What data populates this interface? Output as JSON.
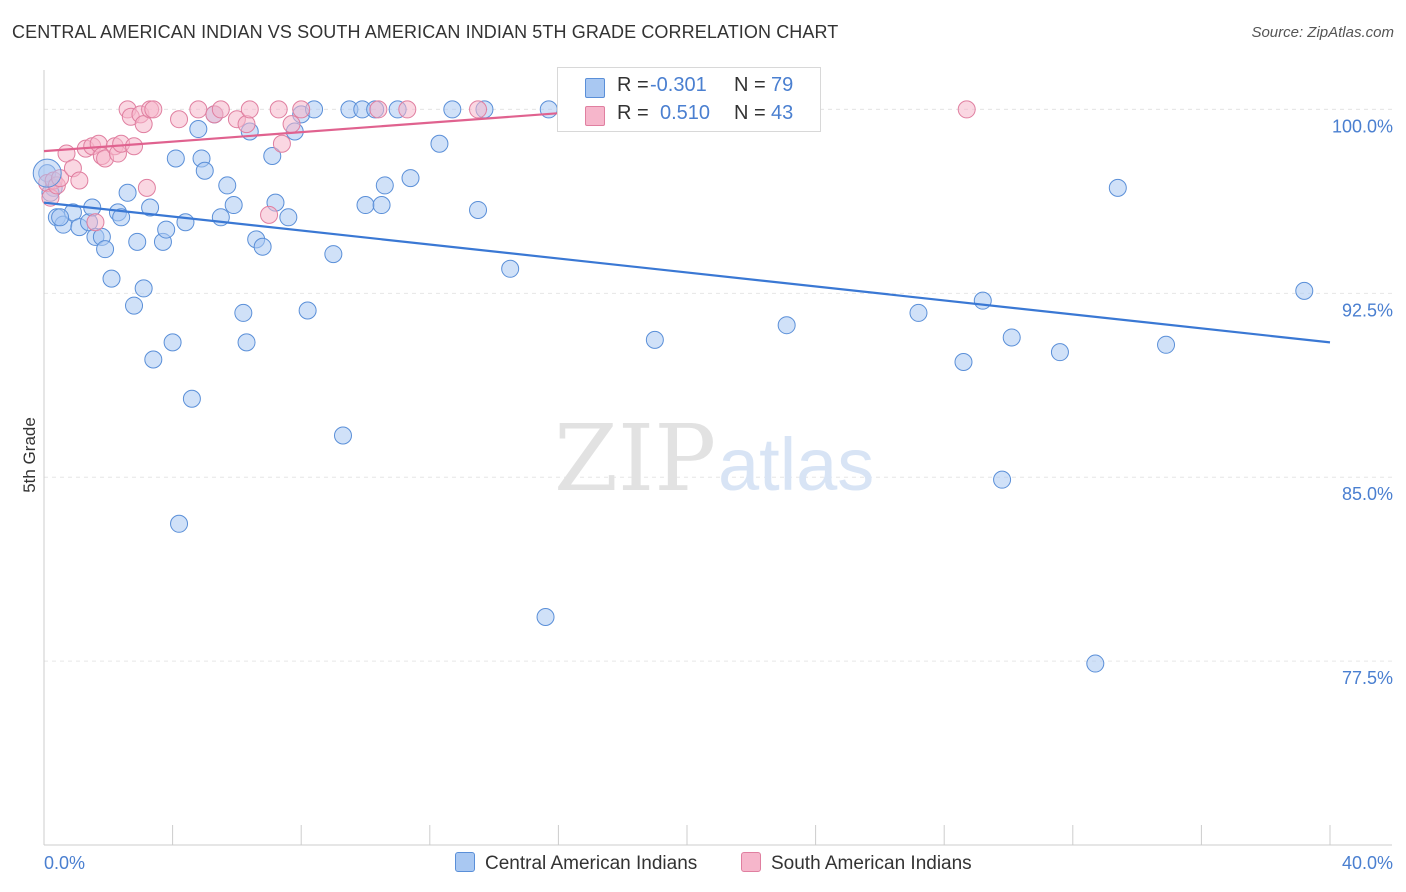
{
  "header": {
    "title": "CENTRAL AMERICAN INDIAN VS SOUTH AMERICAN INDIAN 5TH GRADE CORRELATION CHART",
    "source": "Source: ZipAtlas.com"
  },
  "watermark": {
    "zip": "ZIP",
    "atlas": "atlas"
  },
  "legend": {
    "rows": [
      {
        "r_label": "R =",
        "r_value": "-0.301",
        "n_label": "N =",
        "n_value": "79",
        "color": "#a9c8f2",
        "stroke": "#5a8fd8"
      },
      {
        "r_label": "R =",
        "r_value": "0.510",
        "n_label": "N =",
        "n_value": "43",
        "color": "#f6b6cb",
        "stroke": "#e07fa0"
      }
    ]
  },
  "bottom_legend": {
    "items": [
      {
        "label": "Central American Indians",
        "color": "#a9c8f2",
        "stroke": "#5a8fd8"
      },
      {
        "label": "South American Indians",
        "color": "#f6b6cb",
        "stroke": "#e07fa0"
      }
    ]
  },
  "chart_data": {
    "type": "scatter",
    "title": "CENTRAL AMERICAN INDIAN VS SOUTH AMERICAN INDIAN 5TH GRADE CORRELATION CHART",
    "xlabel": "",
    "ylabel": "5th Grade",
    "xlim": [
      0,
      40
    ],
    "ylim": [
      70,
      101.2
    ],
    "x_tick_labels": [
      "0.0%",
      "40.0%"
    ],
    "y_ticks": [
      77.5,
      85.0,
      92.5,
      100.0
    ],
    "y_tick_labels": [
      "77.5%",
      "85.0%",
      "92.5%",
      "100.0%"
    ],
    "grid": true,
    "legend_position": "top-center",
    "series": [
      {
        "name": "Central American Indians",
        "color": "#a9c8f2",
        "stroke": "#5a8fd8",
        "trend": {
          "x": [
            0,
            40
          ],
          "y": [
            96.2,
            90.5
          ],
          "color": "#3a78d4"
        },
        "points": [
          [
            0.1,
            97.4
          ],
          [
            0.3,
            96.8
          ],
          [
            0.4,
            95.6
          ],
          [
            0.6,
            95.3
          ],
          [
            0.9,
            95.8
          ],
          [
            1.1,
            95.2
          ],
          [
            1.4,
            95.4
          ],
          [
            1.5,
            96.0
          ],
          [
            1.6,
            94.8
          ],
          [
            1.8,
            94.8
          ],
          [
            1.9,
            94.3
          ],
          [
            2.1,
            93.1
          ],
          [
            2.3,
            95.8
          ],
          [
            2.4,
            95.6
          ],
          [
            2.6,
            96.6
          ],
          [
            2.8,
            92.0
          ],
          [
            2.9,
            94.6
          ],
          [
            3.1,
            92.7
          ],
          [
            3.3,
            96.0
          ],
          [
            3.4,
            89.8
          ],
          [
            3.7,
            94.6
          ],
          [
            3.8,
            95.1
          ],
          [
            4.0,
            90.5
          ],
          [
            4.1,
            98.0
          ],
          [
            4.2,
            83.1
          ],
          [
            4.4,
            95.4
          ],
          [
            4.6,
            88.2
          ],
          [
            4.8,
            99.2
          ],
          [
            4.9,
            98.0
          ],
          [
            5.0,
            97.5
          ],
          [
            5.3,
            99.8
          ],
          [
            5.5,
            95.6
          ],
          [
            5.7,
            96.9
          ],
          [
            5.9,
            96.1
          ],
          [
            6.2,
            91.7
          ],
          [
            6.3,
            90.5
          ],
          [
            6.4,
            99.1
          ],
          [
            6.6,
            94.7
          ],
          [
            6.8,
            94.4
          ],
          [
            7.1,
            98.1
          ],
          [
            7.2,
            96.2
          ],
          [
            7.6,
            95.6
          ],
          [
            7.8,
            99.1
          ],
          [
            8.0,
            99.8
          ],
          [
            8.2,
            91.8
          ],
          [
            8.4,
            100.0
          ],
          [
            9.0,
            94.1
          ],
          [
            9.3,
            86.7
          ],
          [
            9.5,
            100.0
          ],
          [
            9.9,
            100.0
          ],
          [
            10.0,
            96.1
          ],
          [
            10.3,
            100.0
          ],
          [
            10.5,
            96.1
          ],
          [
            10.6,
            96.9
          ],
          [
            11.0,
            100.0
          ],
          [
            11.4,
            97.2
          ],
          [
            12.3,
            98.6
          ],
          [
            12.7,
            100.0
          ],
          [
            13.5,
            95.9
          ],
          [
            13.7,
            100.0
          ],
          [
            14.5,
            93.5
          ],
          [
            15.7,
            100.0
          ],
          [
            15.6,
            79.3
          ],
          [
            16.6,
            100.0
          ],
          [
            18.5,
            100.0
          ],
          [
            19.0,
            90.6
          ],
          [
            23.1,
            91.2
          ],
          [
            27.2,
            91.7
          ],
          [
            28.6,
            89.7
          ],
          [
            29.2,
            92.2
          ],
          [
            29.8,
            84.9
          ],
          [
            30.1,
            90.7
          ],
          [
            31.6,
            90.1
          ],
          [
            32.7,
            77.4
          ],
          [
            33.4,
            96.8
          ],
          [
            34.9,
            90.4
          ],
          [
            39.2,
            92.6
          ],
          [
            0.2,
            96.6
          ],
          [
            0.5,
            95.6
          ]
        ]
      },
      {
        "name": "South American Indians",
        "color": "#f6b6cb",
        "stroke": "#e07fa0",
        "trend": {
          "x": [
            0,
            17.6
          ],
          "y": [
            98.3,
            100.0
          ],
          "color": "#e0628f"
        },
        "points": [
          [
            0.1,
            97.0
          ],
          [
            0.2,
            96.4
          ],
          [
            0.3,
            97.1
          ],
          [
            0.4,
            96.9
          ],
          [
            0.5,
            97.2
          ],
          [
            0.7,
            98.2
          ],
          [
            0.9,
            97.6
          ],
          [
            1.1,
            97.1
          ],
          [
            1.3,
            98.4
          ],
          [
            1.5,
            98.5
          ],
          [
            1.6,
            95.4
          ],
          [
            1.7,
            98.6
          ],
          [
            1.8,
            98.1
          ],
          [
            1.9,
            98.0
          ],
          [
            2.2,
            98.5
          ],
          [
            2.3,
            98.2
          ],
          [
            2.4,
            98.6
          ],
          [
            2.6,
            100.0
          ],
          [
            2.7,
            99.7
          ],
          [
            2.8,
            98.5
          ],
          [
            3.0,
            99.8
          ],
          [
            3.1,
            99.4
          ],
          [
            3.2,
            96.8
          ],
          [
            3.3,
            100.0
          ],
          [
            3.4,
            100.0
          ],
          [
            4.2,
            99.6
          ],
          [
            4.8,
            100.0
          ],
          [
            5.3,
            99.8
          ],
          [
            5.5,
            100.0
          ],
          [
            6.0,
            99.6
          ],
          [
            6.3,
            99.4
          ],
          [
            6.4,
            100.0
          ],
          [
            7.0,
            95.7
          ],
          [
            7.3,
            100.0
          ],
          [
            7.4,
            98.6
          ],
          [
            7.7,
            99.4
          ],
          [
            8.0,
            100.0
          ],
          [
            10.4,
            100.0
          ],
          [
            11.3,
            100.0
          ],
          [
            13.5,
            100.0
          ],
          [
            17.5,
            100.0
          ],
          [
            22.7,
            100.0
          ],
          [
            28.7,
            100.0
          ]
        ]
      }
    ]
  }
}
